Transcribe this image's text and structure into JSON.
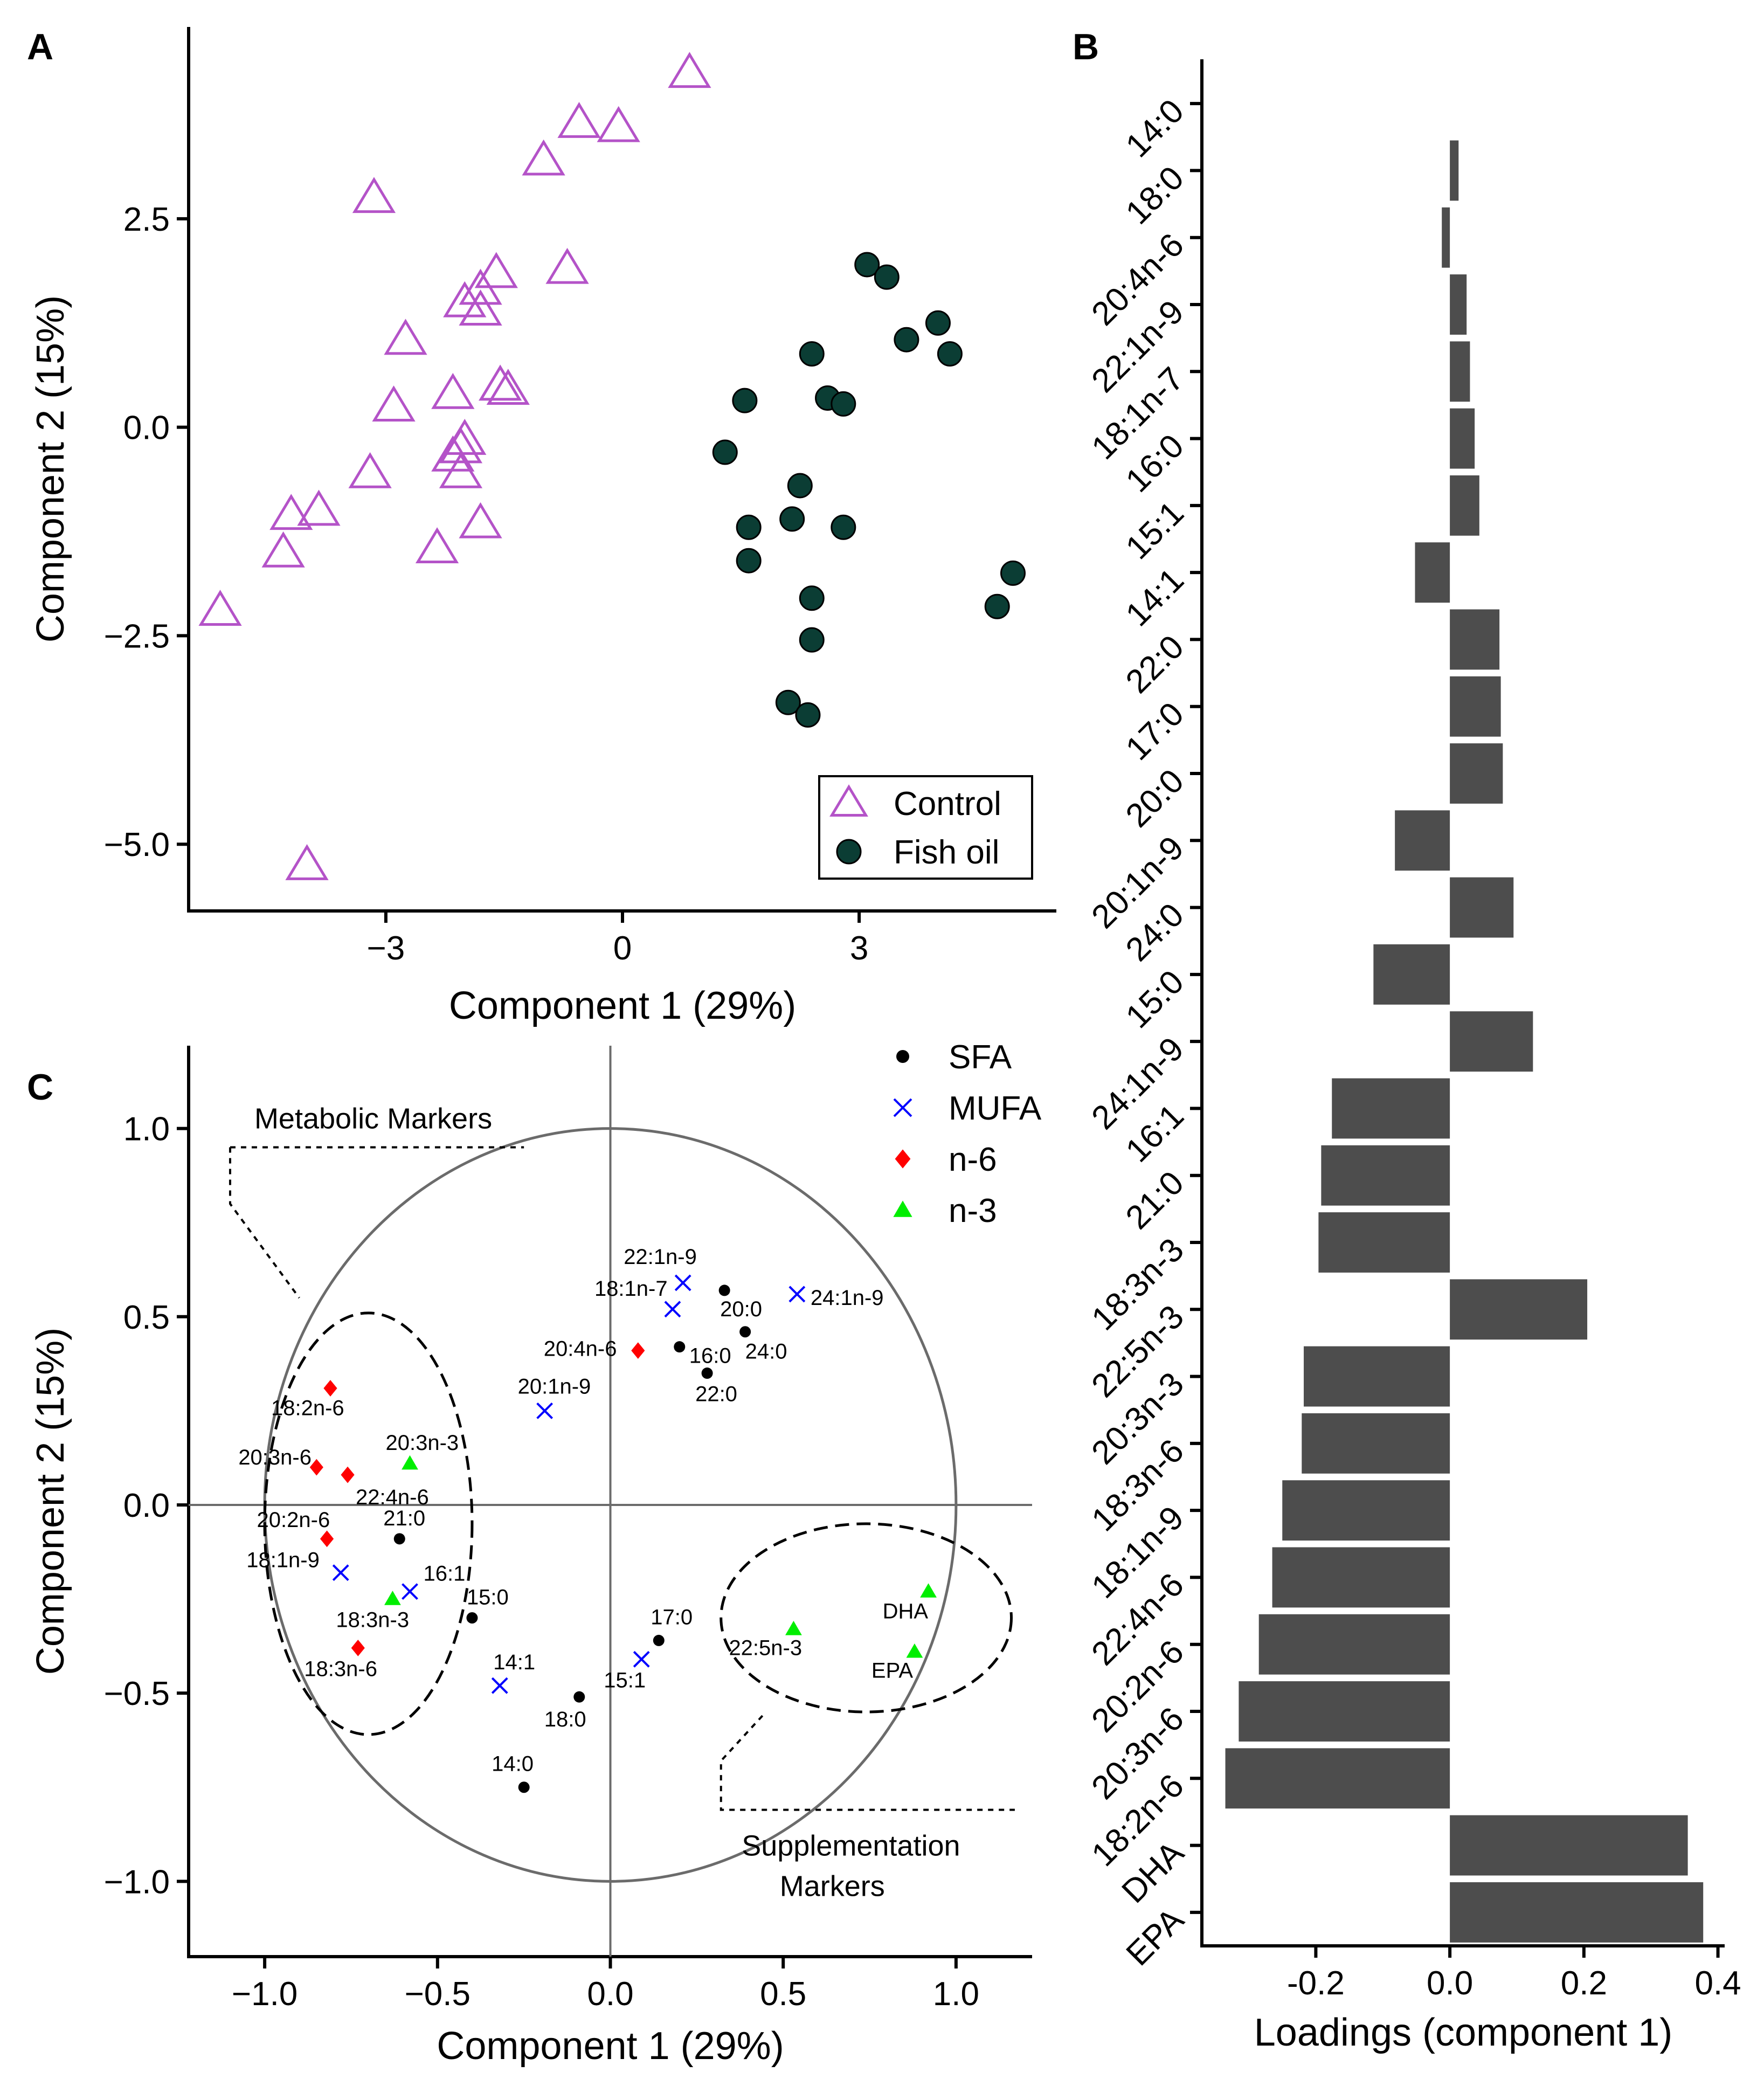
{
  "chart_data": [
    {
      "panel": "A",
      "type": "scatter",
      "xlabel": "Component 1 (29%)",
      "ylabel": "Component 2 (15%)",
      "xlim": [
        -5.5,
        5.5
      ],
      "ylim": [
        -5.8,
        4.8
      ],
      "xticks": [
        -3,
        0,
        3
      ],
      "xtick_labels": [
        "−3",
        "0",
        "3"
      ],
      "yticks": [
        -5,
        -2.5,
        0,
        2.5
      ],
      "ytick_labels": [
        "−5.0",
        "−2.5",
        "0.0",
        "2.5"
      ],
      "legend_position": "bottom-right",
      "series": [
        {
          "name": "Control",
          "marker": "triangle-open",
          "color": "#b453c8",
          "points": [
            [
              0.85,
              4.25
            ],
            [
              -0.55,
              3.65
            ],
            [
              -0.05,
              3.6
            ],
            [
              -1.0,
              3.2
            ],
            [
              -3.15,
              2.75
            ],
            [
              -0.7,
              1.9
            ],
            [
              -1.6,
              1.85
            ],
            [
              -1.8,
              1.65
            ],
            [
              -2.0,
              1.5
            ],
            [
              -1.8,
              1.4
            ],
            [
              -2.75,
              1.05
            ],
            [
              -1.55,
              0.5
            ],
            [
              -1.45,
              0.45
            ],
            [
              -2.15,
              0.4
            ],
            [
              -2.9,
              0.25
            ],
            [
              -2.0,
              -0.15
            ],
            [
              -2.05,
              -0.25
            ],
            [
              -2.15,
              -0.35
            ],
            [
              -2.05,
              -0.55
            ],
            [
              -3.2,
              -0.55
            ],
            [
              -3.85,
              -1.0
            ],
            [
              -4.2,
              -1.05
            ],
            [
              -1.8,
              -1.15
            ],
            [
              -4.3,
              -1.5
            ],
            [
              -2.35,
              -1.45
            ],
            [
              -5.1,
              -2.2
            ],
            [
              -4.0,
              -5.25
            ]
          ]
        },
        {
          "name": "Fish oil",
          "marker": "circle-filled",
          "color": "#0b3d34",
          "points": [
            [
              3.1,
              1.95
            ],
            [
              3.35,
              1.8
            ],
            [
              4.0,
              1.25
            ],
            [
              3.6,
              1.05
            ],
            [
              4.15,
              0.88
            ],
            [
              2.4,
              0.88
            ],
            [
              1.55,
              0.32
            ],
            [
              2.6,
              0.35
            ],
            [
              2.8,
              0.28
            ],
            [
              1.3,
              -0.3
            ],
            [
              2.25,
              -0.7
            ],
            [
              1.6,
              -1.2
            ],
            [
              2.15,
              -1.1
            ],
            [
              2.8,
              -1.2
            ],
            [
              1.6,
              -1.6
            ],
            [
              2.4,
              -2.05
            ],
            [
              4.95,
              -1.75
            ],
            [
              4.75,
              -2.15
            ],
            [
              2.4,
              -2.55
            ],
            [
              2.1,
              -3.3
            ],
            [
              2.35,
              -3.45
            ]
          ]
        }
      ]
    },
    {
      "panel": "B",
      "type": "bar",
      "orientation": "horizontal",
      "xlabel": "Loadings (component 1)",
      "xlim": [
        -0.37,
        0.41
      ],
      "xticks": [
        -0.2,
        0.0,
        0.2,
        0.4
      ],
      "xtick_labels": [
        "-0.2",
        "0.0",
        "0.2",
        "0.4"
      ],
      "categories": [
        "14:0",
        "18:0",
        "20:4n-6",
        "22:1n-9",
        "18:1n-7",
        "16:0",
        "15:1",
        "14:1",
        "22:0",
        "17:0",
        "20:0",
        "20:1n-9",
        "24:0",
        "15:0",
        "24:1n-9",
        "16:1",
        "21:0",
        "18:3n-3",
        "22:5n-3",
        "20:3n-3",
        "18:3n-6",
        "18:1n-9",
        "22:4n-6",
        "20:2n-6",
        "20:3n-6",
        "18:2n-6",
        "DHA",
        "EPA"
      ],
      "values": [
        0.0,
        0.013,
        -0.012,
        0.025,
        0.03,
        0.037,
        0.044,
        -0.052,
        0.074,
        0.076,
        0.079,
        -0.082,
        0.095,
        -0.114,
        0.124,
        -0.176,
        -0.192,
        -0.196,
        0.205,
        -0.218,
        -0.221,
        -0.25,
        -0.265,
        -0.285,
        -0.315,
        -0.335,
        0.355,
        0.378
      ],
      "color": "#4d4d4d"
    },
    {
      "panel": "C",
      "type": "scatter",
      "xlabel": "Component 1 (29%)",
      "ylabel": "Component 2 (15%)",
      "xlim": [
        -1.22,
        1.22
      ],
      "ylim": [
        -1.2,
        1.22
      ],
      "xticks": [
        -1.0,
        -0.5,
        0.0,
        0.5,
        1.0
      ],
      "xtick_labels": [
        "−1.0",
        "−0.5",
        "0.0",
        "0.5",
        "1.0"
      ],
      "yticks": [
        -1.0,
        -0.5,
        0.0,
        0.5,
        1.0
      ],
      "ytick_labels": [
        "−1.0",
        "−0.5",
        "0.0",
        "0.5",
        "1.0"
      ],
      "legend_position": "top-right",
      "annotations": [
        "Metabolic Markers",
        "Supplementation",
        "Markers"
      ],
      "groups": [
        {
          "name": "SFA",
          "marker": "circle",
          "color": "#000000"
        },
        {
          "name": "MUFA",
          "marker": "x",
          "color": "#0000ff"
        },
        {
          "name": "n-6",
          "marker": "diamond",
          "color": "#ff0000"
        },
        {
          "name": "n-3",
          "marker": "triangle",
          "color": "#00ee00"
        }
      ],
      "points": [
        {
          "label": "20:0",
          "group": "SFA",
          "x": 0.33,
          "y": 0.57
        },
        {
          "label": "24:0",
          "group": "SFA",
          "x": 0.39,
          "y": 0.46
        },
        {
          "label": "16:0",
          "group": "SFA",
          "x": 0.2,
          "y": 0.42
        },
        {
          "label": "22:0",
          "group": "SFA",
          "x": 0.28,
          "y": 0.35
        },
        {
          "label": "21:0",
          "group": "SFA",
          "x": -0.61,
          "y": -0.09
        },
        {
          "label": "15:0",
          "group": "SFA",
          "x": -0.4,
          "y": -0.3
        },
        {
          "label": "17:0",
          "group": "SFA",
          "x": 0.14,
          "y": -0.36
        },
        {
          "label": "18:0",
          "group": "SFA",
          "x": -0.09,
          "y": -0.51
        },
        {
          "label": "14:0",
          "group": "SFA",
          "x": -0.25,
          "y": -0.75
        },
        {
          "label": "22:1n-9",
          "group": "MUFA",
          "x": 0.21,
          "y": 0.59
        },
        {
          "label": "18:1n-7",
          "group": "MUFA",
          "x": 0.18,
          "y": 0.52
        },
        {
          "label": "24:1n-9",
          "group": "MUFA",
          "x": 0.54,
          "y": 0.56
        },
        {
          "label": "20:1n-9",
          "group": "MUFA",
          "x": -0.19,
          "y": 0.25
        },
        {
          "label": "18:1n-9",
          "group": "MUFA",
          "x": -0.78,
          "y": -0.18
        },
        {
          "label": "16:1",
          "group": "MUFA",
          "x": -0.58,
          "y": -0.23
        },
        {
          "label": "14:1",
          "group": "MUFA",
          "x": -0.32,
          "y": -0.48
        },
        {
          "label": "15:1",
          "group": "MUFA",
          "x": 0.09,
          "y": -0.41
        },
        {
          "label": "20:4n-6",
          "group": "n-6",
          "x": 0.08,
          "y": 0.41
        },
        {
          "label": "18:2n-6",
          "group": "n-6",
          "x": -0.81,
          "y": 0.31
        },
        {
          "label": "20:3n-6",
          "group": "n-6",
          "x": -0.85,
          "y": 0.1
        },
        {
          "label": "22:4n-6",
          "group": "n-6",
          "x": -0.76,
          "y": 0.08
        },
        {
          "label": "20:2n-6",
          "group": "n-6",
          "x": -0.82,
          "y": -0.09
        },
        {
          "label": "18:3n-6",
          "group": "n-6",
          "x": -0.73,
          "y": -0.38
        },
        {
          "label": "20:3n-3",
          "group": "n-3",
          "x": -0.58,
          "y": 0.11
        },
        {
          "label": "18:3n-3",
          "group": "n-3",
          "x": -0.63,
          "y": -0.25
        },
        {
          "label": "22:5n-3",
          "group": "n-3",
          "x": 0.53,
          "y": -0.33
        },
        {
          "label": "DHA",
          "group": "n-3",
          "x": 0.92,
          "y": -0.23
        },
        {
          "label": "EPA",
          "group": "n-3",
          "x": 0.88,
          "y": -0.39
        }
      ]
    }
  ]
}
